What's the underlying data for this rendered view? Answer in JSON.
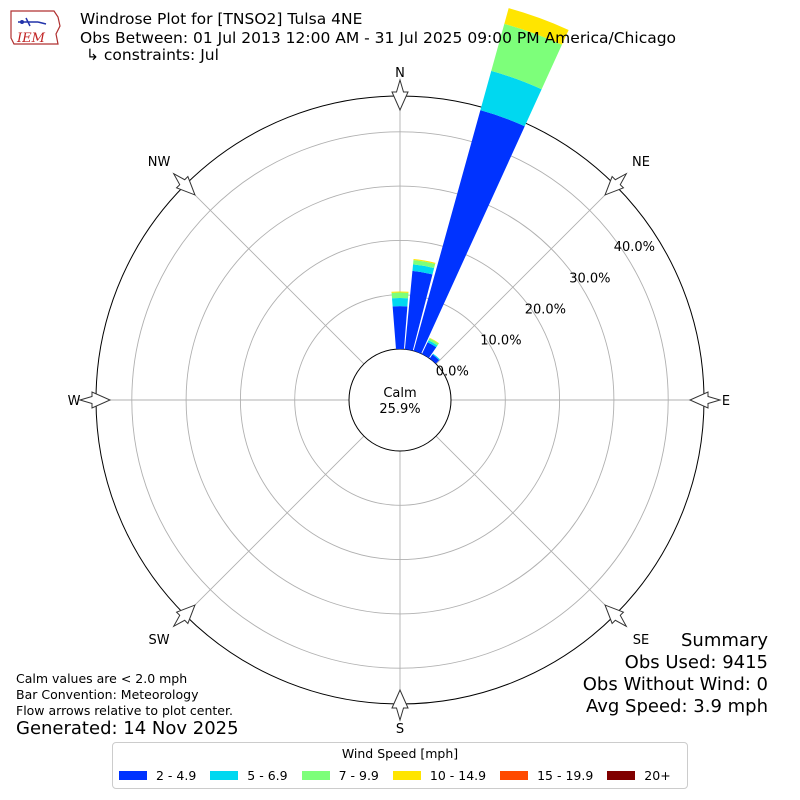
{
  "header": {
    "title": "Windrose Plot for [TNSO2] Tulsa 4NE",
    "subtitle": "Obs Between: 01 Jul 2013 12:00 AM - 31 Jul 2025 09:00 PM America/Chicago",
    "constraints": "↳ constraints: Jul",
    "logo_text": "IEM"
  },
  "notes": {
    "calm_note": "Calm values are < 2.0 mph",
    "bar_convention": "Bar Convention: Meteorology",
    "flow_note": "Flow arrows relative to plot center.",
    "generated": "Generated: 14 Nov 2025"
  },
  "summary": {
    "heading": "Summary",
    "obs_used": "Obs Used: 9415",
    "obs_without_wind": "Obs Without Wind: 0",
    "avg_speed": "Avg Speed: 3.9 mph"
  },
  "legend": {
    "title": "Wind Speed [mph]",
    "items": [
      {
        "label": "2 - 4.9",
        "color": "#0033ff"
      },
      {
        "label": "5 - 6.9",
        "color": "#00d8f0"
      },
      {
        "label": "7 - 9.9",
        "color": "#7dff7a"
      },
      {
        "label": "10 - 14.9",
        "color": "#ffe500"
      },
      {
        "label": "15 - 19.9",
        "color": "#ff4a00"
      },
      {
        "label": "20+",
        "color": "#800000"
      }
    ]
  },
  "chart_data": {
    "type": "windrose",
    "calm": {
      "label": "Calm",
      "value": "25.9%"
    },
    "radial_ticks": [
      0,
      10,
      20,
      30,
      40
    ],
    "radial_tick_labels": [
      "0.0%",
      "10.0%",
      "20.0%",
      "30.0%",
      "40.0%"
    ],
    "compass_labels": [
      "N",
      "NE",
      "E",
      "SE",
      "S",
      "SW",
      "W",
      "NW"
    ],
    "bin_colors": [
      "#0033ff",
      "#00d8f0",
      "#7dff7a",
      "#ffe500",
      "#ff4a00",
      "#800000"
    ],
    "bins": [
      {
        "direction": 0,
        "values": [
          7.9,
          1.5,
          1.0,
          0.2,
          0,
          0
        ]
      },
      {
        "direction": 10,
        "values": [
          14.5,
          1.2,
          0.8,
          0.2,
          0,
          0
        ]
      },
      {
        "direction": 20,
        "values": [
          46.0,
          7.5,
          9.0,
          3.0,
          0,
          0
        ]
      },
      {
        "direction": 30,
        "values": [
          2.4,
          0.4,
          0.4,
          0.1,
          0,
          0
        ]
      },
      {
        "direction": 40,
        "values": [
          0.9,
          0.2,
          0,
          0,
          0,
          0
        ]
      }
    ]
  }
}
